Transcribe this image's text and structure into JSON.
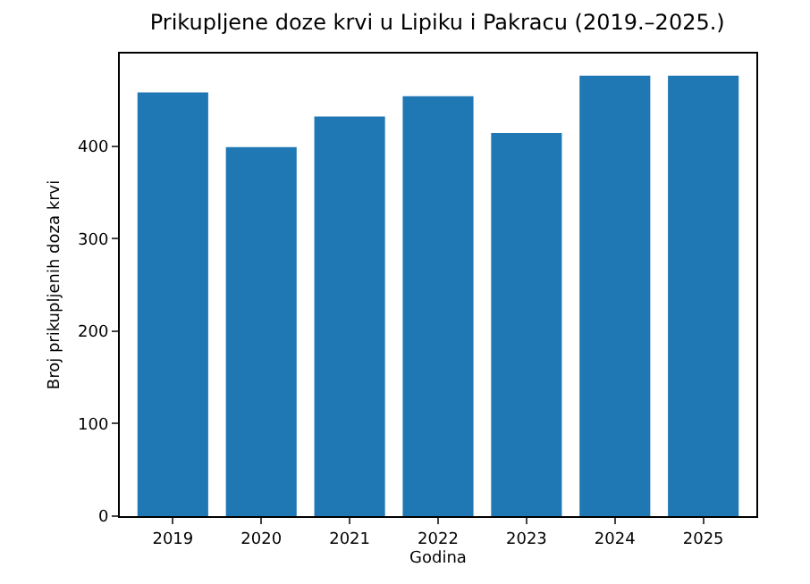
{
  "chart_data": {
    "type": "bar",
    "title": "Prikupljene doze krvi u Lipiku i Pakracu (2019.–2025.)",
    "xlabel": "Godina",
    "ylabel": "Broj prikupljenih doza krvi",
    "categories": [
      "2019",
      "2020",
      "2021",
      "2022",
      "2023",
      "2024",
      "2025"
    ],
    "values": [
      458,
      399,
      432,
      454,
      414,
      476,
      476
    ],
    "color": "#1f77b4",
    "ylim": [
      0,
      500
    ],
    "yticks": [
      0,
      100,
      200,
      300,
      400
    ],
    "grid": false
  }
}
